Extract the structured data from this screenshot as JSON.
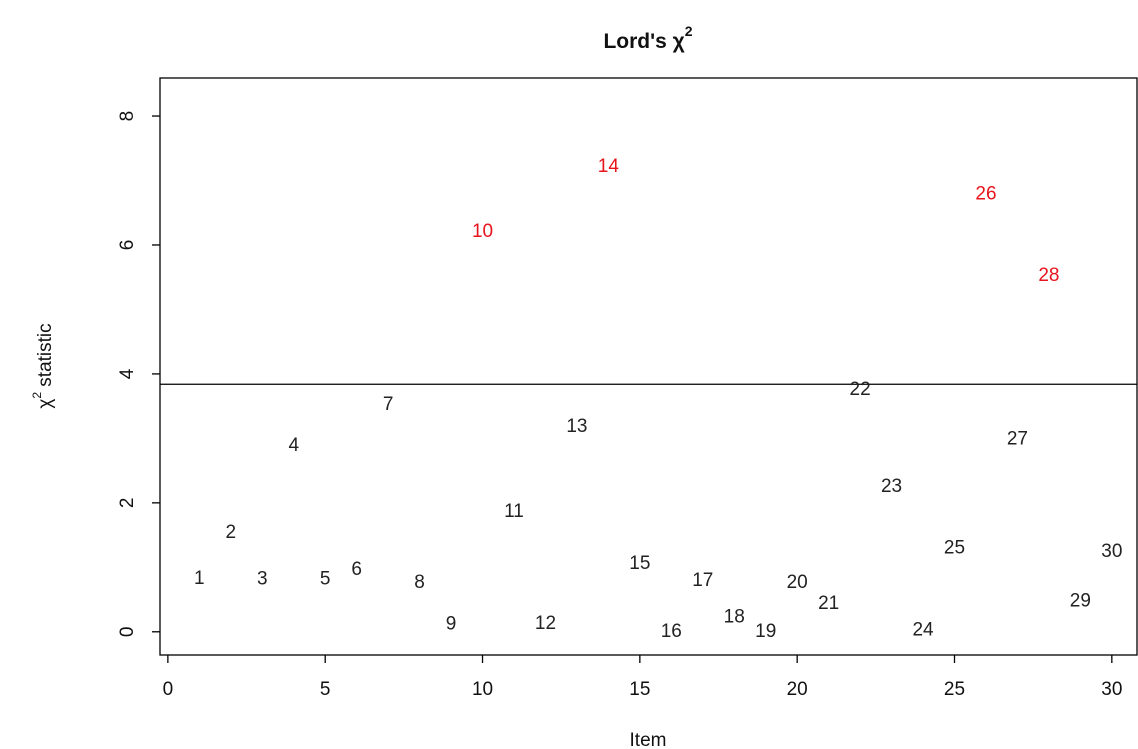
{
  "chart_data": {
    "type": "scatter",
    "title": {
      "text": "Lord's χ",
      "superscript": "2"
    },
    "xlabel": "Item",
    "ylabel": {
      "text": "χ",
      "superscript": "2",
      "rest": " statistic"
    },
    "x": [
      1,
      2,
      3,
      4,
      5,
      6,
      7,
      8,
      9,
      10,
      11,
      12,
      13,
      14,
      15,
      16,
      17,
      18,
      19,
      20,
      21,
      22,
      23,
      24,
      25,
      26,
      27,
      28,
      29,
      30
    ],
    "values": [
      0.82,
      1.53,
      0.81,
      2.88,
      0.81,
      0.96,
      3.52,
      0.76,
      0.11,
      6.2,
      1.86,
      0.12,
      3.18,
      7.21,
      1.05,
      0.0,
      0.79,
      0.22,
      0.0,
      0.76,
      0.43,
      3.75,
      2.25,
      0.02,
      1.29,
      6.78,
      2.98,
      5.52,
      0.47,
      1.24
    ],
    "colors": [
      "#222",
      "#222",
      "#222",
      "#222",
      "#222",
      "#222",
      "#222",
      "#222",
      "#222",
      "#e8141c",
      "#222",
      "#222",
      "#222",
      "#e8141c",
      "#222",
      "#222",
      "#222",
      "#222",
      "#222",
      "#222",
      "#222",
      "#222",
      "#222",
      "#222",
      "#222",
      "#e8141c",
      "#222",
      "#e8141c",
      "#222",
      "#222"
    ],
    "threshold": 3.84,
    "xlim": [
      -0.25,
      30.8
    ],
    "ylim": [
      -0.36,
      8.59
    ],
    "xticks": [
      0,
      5,
      10,
      15,
      20,
      25,
      30
    ],
    "yticks": [
      0,
      2,
      4,
      6,
      8
    ]
  }
}
